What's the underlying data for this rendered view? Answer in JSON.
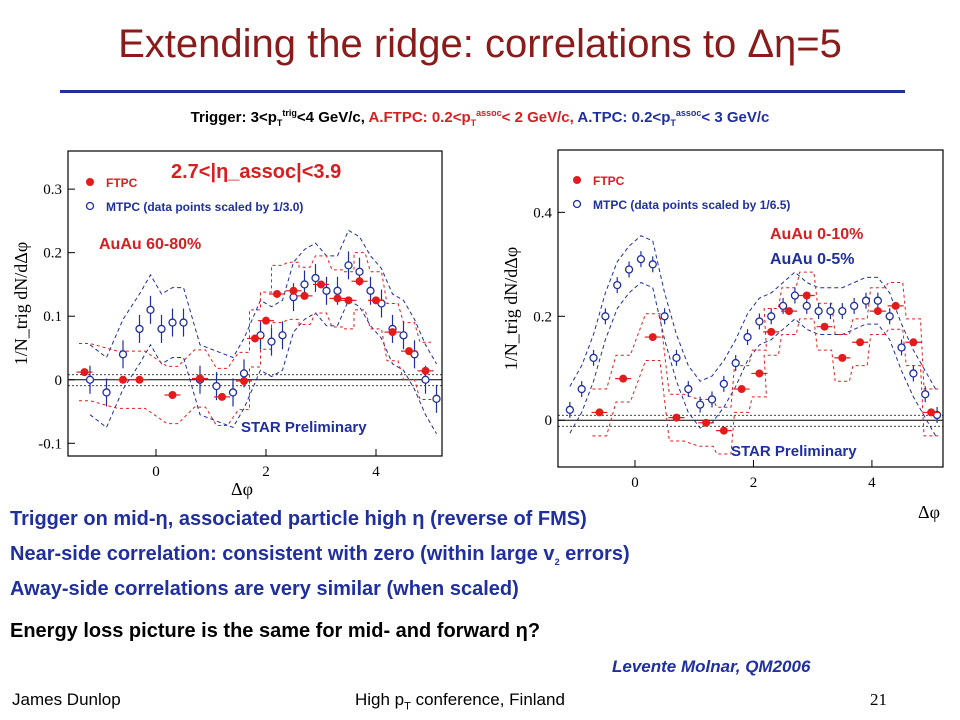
{
  "slide": {
    "title": "Extending the ridge: correlations to Δη=5",
    "trigger": {
      "t1": "Trigger: 3<p",
      "t1sub": "T",
      "t1sup": "trig",
      "t1tail": "<4 GeV/c,",
      "t2": "A.FTPC: 0.2<p",
      "t2sub": "T",
      "t2sup": "assoc",
      "t2tail": "< 2 GeV/c,",
      "t3": "A.TPC: 0.2<p",
      "t3sub": "T",
      "t3sup": "assoc",
      "t3tail": "< 3 GeV/c"
    },
    "bullets": [
      "Trigger on mid-η, associated particle high η (reverse of FMS)",
      "Near-side correlation: consistent with zero (within large v",
      "Away-side correlations are very similar (when scaled)",
      "Energy loss picture is the same for mid- and forward η?"
    ],
    "bullet2_sub": "2",
    "bullet2_tail": " errors)",
    "citation": "Levente Molnar, QM2006",
    "footer": {
      "author": "James Dunlop",
      "conference_pre": "High p",
      "conference_sub": "T",
      "conference_post": " conference, Finland",
      "page": "21"
    }
  },
  "chart_data": [
    {
      "type": "scatter",
      "ylabel": "1/N_trig dN/dΔφ",
      "xlabel": "Δφ",
      "xticks": [
        0,
        2,
        4
      ],
      "yticks": [
        -0.1,
        0,
        0.1,
        0.2,
        0.3
      ],
      "xlim": [
        -1.6,
        5.2
      ],
      "ylim": [
        -0.12,
        0.36
      ],
      "eta_label": "2.7<|η_assoc|<3.9",
      "centrality": "AuAu 60-80%",
      "preliminary": "STAR Preliminary",
      "legend": [
        "FTPC",
        "MTPC (data points scaled by 1/3.0)"
      ],
      "series": [
        {
          "name": "FTPC",
          "color": "#e41a1c",
          "x": [
            -1.3,
            -0.6,
            -0.3,
            0.3,
            0.8,
            1.2,
            1.6,
            1.8,
            2.0,
            2.2,
            2.5,
            2.7,
            3.0,
            3.3,
            3.5,
            3.7,
            4.0,
            4.3,
            4.6,
            4.9
          ],
          "y": [
            0.012,
            0.0,
            0.0,
            -0.024,
            0.002,
            -0.027,
            -0.002,
            0.065,
            0.093,
            0.135,
            0.14,
            0.132,
            0.15,
            0.128,
            0.125,
            0.155,
            0.125,
            0.075,
            0.045,
            0.014
          ]
        },
        {
          "name": "MTPC (data points scaled by 1/3.0)",
          "color": "#1f2fa0",
          "x": [
            -1.2,
            -0.9,
            -0.6,
            -0.3,
            -0.1,
            0.1,
            0.3,
            0.5,
            0.8,
            1.1,
            1.4,
            1.6,
            1.9,
            2.1,
            2.3,
            2.5,
            2.7,
            2.9,
            3.1,
            3.3,
            3.5,
            3.7,
            3.9,
            4.1,
            4.3,
            4.5,
            4.7,
            4.9,
            5.1
          ],
          "y": [
            0.0,
            -0.02,
            0.04,
            0.08,
            0.11,
            0.08,
            0.09,
            0.09,
            0.0,
            -0.01,
            -0.02,
            0.01,
            0.07,
            0.06,
            0.07,
            0.13,
            0.15,
            0.16,
            0.14,
            0.14,
            0.18,
            0.17,
            0.14,
            0.12,
            0.08,
            0.07,
            0.04,
            0.0,
            -0.03
          ]
        }
      ]
    },
    {
      "type": "scatter",
      "ylabel": "1/N_trig dN/dΔφ",
      "xlabel": "Δφ",
      "xticks": [
        0,
        2,
        4
      ],
      "yticks": [
        0,
        0.2,
        0.4
      ],
      "xlim": [
        -1.3,
        5.2
      ],
      "ylim": [
        -0.09,
        0.52
      ],
      "centrality": [
        "AuAu 0-10%",
        "AuAu 0-5%"
      ],
      "preliminary": "STAR Preliminary",
      "legend": [
        "FTPC",
        "MTPC (data points scaled by 1/6.5)"
      ],
      "series": [
        {
          "name": "FTPC",
          "color": "#e41a1c",
          "x": [
            -0.6,
            -0.2,
            0.3,
            0.7,
            1.2,
            1.5,
            1.8,
            2.1,
            2.3,
            2.6,
            2.9,
            3.2,
            3.5,
            3.8,
            4.1,
            4.4,
            4.7,
            5.0
          ],
          "y": [
            0.015,
            0.08,
            0.16,
            0.005,
            -0.005,
            -0.02,
            0.06,
            0.09,
            0.17,
            0.21,
            0.24,
            0.18,
            0.12,
            0.15,
            0.21,
            0.22,
            0.15,
            0.015
          ]
        },
        {
          "name": "MTPC (data points scaled by 1/6.5)",
          "color": "#1f2fa0",
          "x": [
            -1.1,
            -0.9,
            -0.7,
            -0.5,
            -0.3,
            -0.1,
            0.1,
            0.3,
            0.5,
            0.7,
            0.9,
            1.1,
            1.3,
            1.5,
            1.7,
            1.9,
            2.1,
            2.3,
            2.5,
            2.7,
            2.9,
            3.1,
            3.3,
            3.5,
            3.7,
            3.9,
            4.1,
            4.3,
            4.5,
            4.7,
            4.9,
            5.1
          ],
          "y": [
            0.02,
            0.06,
            0.12,
            0.2,
            0.26,
            0.29,
            0.31,
            0.3,
            0.2,
            0.12,
            0.06,
            0.03,
            0.04,
            0.07,
            0.11,
            0.16,
            0.19,
            0.2,
            0.22,
            0.24,
            0.22,
            0.21,
            0.21,
            0.21,
            0.22,
            0.23,
            0.23,
            0.2,
            0.14,
            0.09,
            0.05,
            0.01
          ]
        }
      ]
    }
  ]
}
